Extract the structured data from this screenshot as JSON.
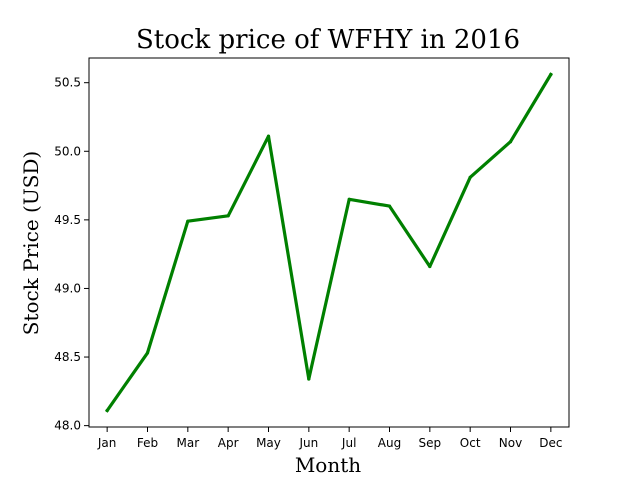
{
  "chart_data": {
    "type": "line",
    "title": "Stock price of WFHY in 2016",
    "xlabel": "Month",
    "ylabel": "Stock Price (USD)",
    "categories": [
      "Jan",
      "Feb",
      "Mar",
      "Apr",
      "May",
      "Jun",
      "Jul",
      "Aug",
      "Sep",
      "Oct",
      "Nov",
      "Dec"
    ],
    "series": [
      {
        "values": [
          48.11,
          48.53,
          49.49,
          49.53,
          50.11,
          48.34,
          49.65,
          49.6,
          49.16,
          49.81,
          50.07,
          50.56
        ],
        "color": "#008000"
      }
    ],
    "yticks": [
      48.0,
      48.5,
      49.0,
      49.5,
      50.0,
      50.5
    ],
    "ytick_labels": [
      "48.0",
      "48.5",
      "49.0",
      "49.5",
      "50.0",
      "50.5"
    ],
    "ylim": [
      47.99,
      50.68
    ],
    "grid": false
  }
}
